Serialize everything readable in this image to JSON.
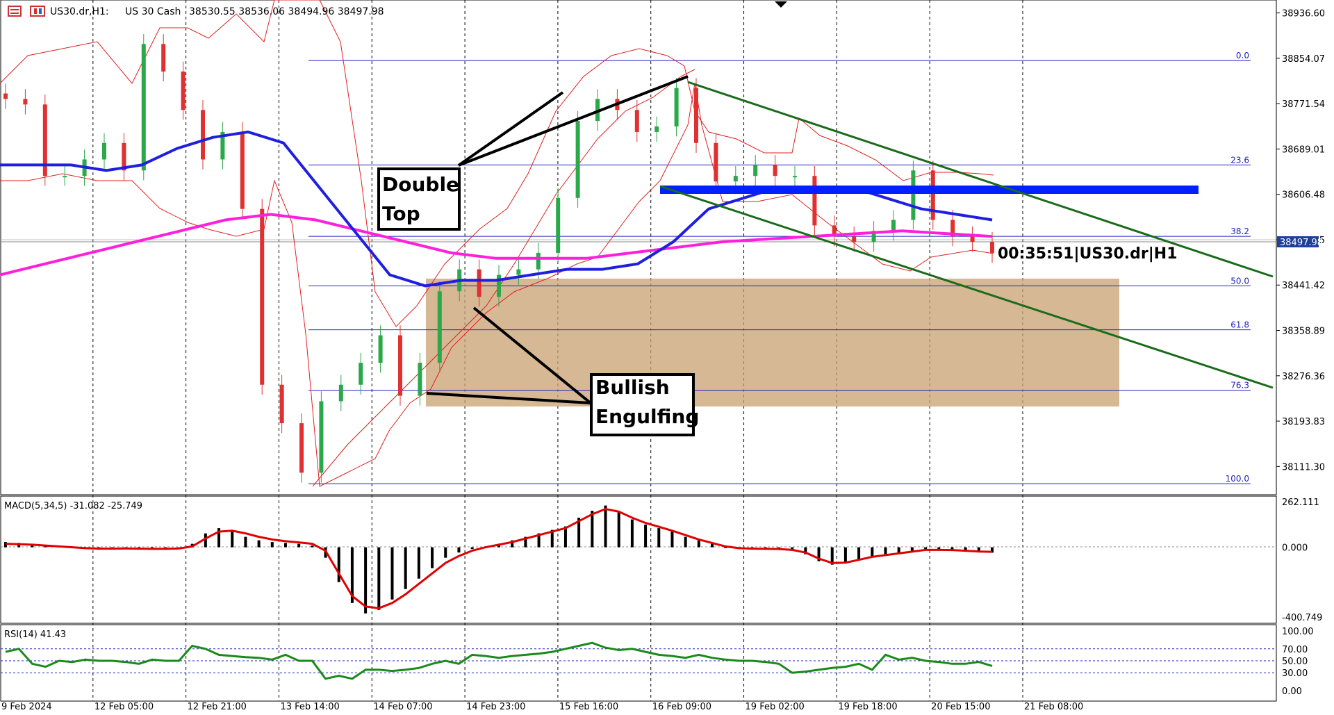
{
  "header": {
    "symbol": "US30.dr,H1:",
    "name": "US 30 Cash",
    "ohlc": "38530.55 38536.06 38494.96 38497.98"
  },
  "price_axis": {
    "ticks": [
      "38936.60",
      "38854.07",
      "38771.54",
      "38689.01",
      "38606.48",
      "38523.95",
      "38441.42",
      "38358.89",
      "38276.36",
      "38193.83",
      "38111.30"
    ],
    "current_price": "38497.98",
    "current_price_color": "#1f3f99"
  },
  "time_axis": {
    "ticks": [
      "9 Feb 2024",
      "12 Feb 05:00",
      "12 Feb 21:00",
      "13 Feb 14:00",
      "14 Feb 07:00",
      "14 Feb 23:00",
      "15 Feb 16:00",
      "16 Feb 09:00",
      "19 Feb 02:00",
      "19 Feb 18:00",
      "20 Feb 15:00",
      "21 Feb 08:00"
    ]
  },
  "fib_levels": [
    "0.0",
    "23.6",
    "38.2",
    "50.0",
    "61.8",
    "76.3",
    "100.0"
  ],
  "annotations": {
    "double_top": [
      "Double",
      "Top"
    ],
    "bullish_engulfing": [
      "Bullish",
      "Engulfing"
    ],
    "clock": "00:35:51|US30.dr|H1"
  },
  "macd": {
    "label": "MACD(5,34,5) -31.082 -25.749",
    "ticks": [
      "262.111",
      "0.000",
      "-400.749"
    ]
  },
  "rsi": {
    "label": "RSI(14) 41.43",
    "ticks": [
      "100.00",
      "70.00",
      "50.00",
      "30.00",
      "0.00"
    ]
  },
  "colors": {
    "ema_fast": "#1f1fe0",
    "ema_slow": "#ff1fdc",
    "bollinger": "#e02020",
    "candle_up": "#2aa84a",
    "candle_down": "#e03030",
    "channel": "#1a6b1a",
    "demand_zone": "#c8a070",
    "supply_zone": "#0020ff",
    "macd_signal": "#e00000",
    "rsi_line": "#1a8a1a"
  },
  "chart_data": {
    "type": "candlestick",
    "title": "US30.dr,H1: US 30 Cash",
    "timeframe": "H1",
    "ylim": [
      38070,
      38950
    ],
    "x": [
      "9 Feb 2024",
      "12 Feb 05:00",
      "12 Feb 21:00",
      "13 Feb 14:00",
      "14 Feb 07:00",
      "14 Feb 23:00",
      "15 Feb 16:00",
      "16 Feb 09:00",
      "19 Feb 02:00",
      "19 Feb 18:00",
      "20 Feb 15:00",
      "21 Feb 08:00"
    ],
    "close_series": [
      38780,
      38770,
      38640,
      38640,
      38670,
      38700,
      38650,
      38880,
      38830,
      38760,
      38670,
      38720,
      38580,
      38260,
      38190,
      38100,
      38230,
      38260,
      38300,
      38350,
      38240,
      38300,
      38430,
      38470,
      38420,
      38460,
      38470,
      38500,
      38600,
      38740,
      38780,
      38760,
      38720,
      38730,
      38800,
      38700,
      38630,
      38640,
      38660,
      38640,
      38640,
      38550,
      38530,
      38520,
      38540,
      38560,
      38650,
      38560,
      38530,
      38520,
      38500
    ],
    "ema_fast": [
      38660,
      38660,
      38660,
      38650,
      38660,
      38690,
      38710,
      38720,
      38700,
      38620,
      38540,
      38460,
      38440,
      38450,
      38450,
      38460,
      38470,
      38470,
      38480,
      38520,
      38580,
      38600,
      38620,
      38620,
      38620,
      38600,
      38580,
      38570,
      38560
    ],
    "ema_slow": [
      38460,
      38480,
      38500,
      38520,
      38540,
      38560,
      38570,
      38560,
      38540,
      38520,
      38500,
      38490,
      38490,
      38490,
      38500,
      38510,
      38520,
      38525,
      38530,
      38535,
      38540,
      38535,
      38530
    ],
    "fibonacci": {
      "0.0": 38850,
      "23.6": 38660,
      "38.2": 38530,
      "50.0": 38440,
      "61.8": 38360,
      "76.3": 38250,
      "100.0": 38080
    },
    "zones": [
      {
        "name": "demand",
        "from": 38210,
        "to": 38440
      },
      {
        "name": "supply",
        "from": 38575,
        "to": 38595
      }
    ],
    "patterns": [
      "Double Top",
      "Bullish Engulfing"
    ],
    "macd": {
      "label": "MACD(5,34,5) -31.082 -25.749",
      "ylim": [
        -400.749,
        262.111
      ],
      "histogram": [
        30,
        25,
        20,
        10,
        5,
        -5,
        -10,
        -10,
        -5,
        -5,
        -8,
        -10,
        -10,
        -5,
        20,
        80,
        110,
        90,
        60,
        40,
        30,
        25,
        20,
        10,
        -60,
        -200,
        -320,
        -380,
        -360,
        -300,
        -240,
        -180,
        -120,
        -60,
        -30,
        -10,
        5,
        20,
        40,
        60,
        80,
        100,
        120,
        170,
        210,
        240,
        200,
        160,
        130,
        110,
        90,
        60,
        40,
        20,
        -5,
        -10,
        -10,
        -10,
        -10,
        -20,
        -40,
        -80,
        -100,
        -90,
        -70,
        -50,
        -40,
        -30,
        -20,
        -10,
        -15,
        -15,
        -20,
        -25,
        -31
      ],
      "signal": [
        20,
        18,
        15,
        10,
        5,
        0,
        -5,
        -8,
        -8,
        -7,
        -8,
        -9,
        -9,
        -7,
        5,
        50,
        90,
        95,
        80,
        60,
        45,
        35,
        28,
        20,
        -20,
        -150,
        -280,
        -340,
        -350,
        -320,
        -270,
        -210,
        -150,
        -90,
        -50,
        -20,
        0,
        15,
        30,
        50,
        70,
        90,
        110,
        150,
        190,
        220,
        205,
        170,
        140,
        118,
        95,
        70,
        45,
        25,
        5,
        -5,
        -8,
        -9,
        -10,
        -15,
        -30,
        -65,
        -90,
        -88,
        -72,
        -55,
        -45,
        -35,
        -25,
        -15,
        -15,
        -16,
        -20,
        -24,
        -25.7
      ]
    },
    "rsi": {
      "label": "RSI(14) 41.43",
      "ylim": [
        0,
        100
      ],
      "levels": [
        70,
        50,
        30
      ],
      "values": [
        65,
        70,
        45,
        40,
        50,
        48,
        52,
        50,
        50,
        48,
        45,
        52,
        50,
        50,
        75,
        70,
        60,
        58,
        56,
        55,
        52,
        60,
        50,
        50,
        20,
        25,
        20,
        35,
        35,
        33,
        35,
        38,
        45,
        50,
        45,
        60,
        58,
        55,
        58,
        60,
        62,
        65,
        70,
        75,
        80,
        72,
        68,
        70,
        65,
        60,
        58,
        55,
        60,
        55,
        52,
        50,
        50,
        48,
        45,
        30,
        32,
        35,
        38,
        40,
        45,
        35,
        60,
        52,
        55,
        50,
        48,
        45,
        45,
        48,
        41.43
      ]
    }
  }
}
